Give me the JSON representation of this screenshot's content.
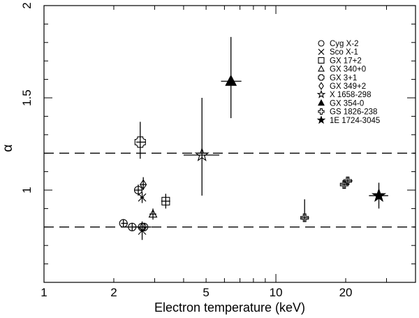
{
  "chart_data": {
    "type": "scatter",
    "xlabel": "Electron temperature (keV)",
    "ylabel": "α",
    "x_scale": "log",
    "xlim": [
      1,
      40
    ],
    "ylim": [
      0.5,
      2.0
    ],
    "x_ticks": [
      {
        "value": 1,
        "label": "1"
      },
      {
        "value": 2,
        "label": "2"
      },
      {
        "value": 5,
        "label": "5"
      },
      {
        "value": 10,
        "label": "10"
      },
      {
        "value": 20,
        "label": "20"
      }
    ],
    "y_ticks": [
      {
        "value": 1,
        "label": "1"
      },
      {
        "value": 1.5,
        "label": "1.5"
      },
      {
        "value": 2,
        "label": "2"
      }
    ],
    "reference_lines": [
      0.8,
      1.2
    ],
    "legend_position": "top-right",
    "series": [
      {
        "name": "Cyg X-2",
        "marker": "circle",
        "points": [
          {
            "x": 2.2,
            "y": 0.82,
            "xlo": 2.15,
            "xhi": 2.3,
            "ylo": 0.8,
            "yhi": 0.84
          },
          {
            "x": 2.4,
            "y": 0.8,
            "xlo": 2.35,
            "xhi": 2.5,
            "ylo": 0.78,
            "yhi": 0.82
          },
          {
            "x": 2.55,
            "y": 1.0,
            "xlo": 2.45,
            "xhi": 2.65,
            "ylo": 0.97,
            "yhi": 1.03
          },
          {
            "x": 2.65,
            "y": 0.8,
            "xlo": 2.4,
            "xhi": 2.9,
            "ylo": 0.78,
            "yhi": 0.82
          },
          {
            "x": 2.7,
            "y": 0.8,
            "xlo": 2.65,
            "xhi": 2.8,
            "ylo": 0.78,
            "yhi": 0.82
          }
        ]
      },
      {
        "name": "Sco X-1",
        "marker": "cross",
        "points": [
          {
            "x": 2.65,
            "y": 0.96,
            "xlo": 2.6,
            "xhi": 2.7,
            "ylo": 0.93,
            "yhi": 0.99
          },
          {
            "x": 2.65,
            "y": 0.78,
            "xlo": 2.6,
            "xhi": 2.7,
            "ylo": 0.73,
            "yhi": 0.83
          }
        ]
      },
      {
        "name": "GX 17+2",
        "marker": "square",
        "points": [
          {
            "x": 3.35,
            "y": 0.94,
            "xlo": 3.2,
            "xhi": 3.5,
            "ylo": 0.9,
            "yhi": 0.98
          }
        ]
      },
      {
        "name": "GX 340+0",
        "marker": "triangle",
        "points": [
          {
            "x": 2.95,
            "y": 0.87,
            "xlo": 2.85,
            "xhi": 3.05,
            "ylo": 0.84,
            "yhi": 0.9
          }
        ]
      },
      {
        "name": "GX 3+1",
        "marker": "cornered-square",
        "points": [
          {
            "x": 2.6,
            "y": 1.26,
            "xlo": 2.5,
            "xhi": 2.75,
            "ylo": 1.17,
            "yhi": 1.37
          }
        ]
      },
      {
        "name": "GX 349+2",
        "marker": "diamond",
        "points": [
          {
            "x": 2.68,
            "y": 1.03,
            "xlo": 2.6,
            "xhi": 2.75,
            "ylo": 1.0,
            "yhi": 1.07
          }
        ]
      },
      {
        "name": "X 1658-298",
        "marker": "star-open",
        "points": [
          {
            "x": 4.8,
            "y": 1.19,
            "xlo": 4.0,
            "xhi": 5.7,
            "ylo": 0.97,
            "yhi": 1.5
          }
        ]
      },
      {
        "name": "GX 354-0",
        "marker": "triangle-filled",
        "points": [
          {
            "x": 6.4,
            "y": 1.59,
            "xlo": 5.8,
            "xhi": 7.1,
            "ylo": 1.39,
            "yhi": 1.83
          }
        ]
      },
      {
        "name": "GS 1826-238",
        "marker": "plus-open",
        "points": [
          {
            "x": 13.3,
            "y": 0.85,
            "xlo": 12.8,
            "xhi": 13.9,
            "ylo": 0.83,
            "yhi": 0.95
          },
          {
            "x": 19.7,
            "y": 1.03,
            "xlo": 19.1,
            "xhi": 20.3,
            "ylo": 1.01,
            "yhi": 1.05
          },
          {
            "x": 20.4,
            "y": 1.05,
            "xlo": 19.4,
            "xhi": 21.4,
            "ylo": 1.03,
            "yhi": 1.07
          }
        ]
      },
      {
        "name": "1E 1724-3045",
        "marker": "star-filled",
        "points": [
          {
            "x": 27.8,
            "y": 0.97,
            "xlo": 25.2,
            "xhi": 30.5,
            "ylo": 0.9,
            "yhi": 1.04
          }
        ]
      }
    ]
  }
}
